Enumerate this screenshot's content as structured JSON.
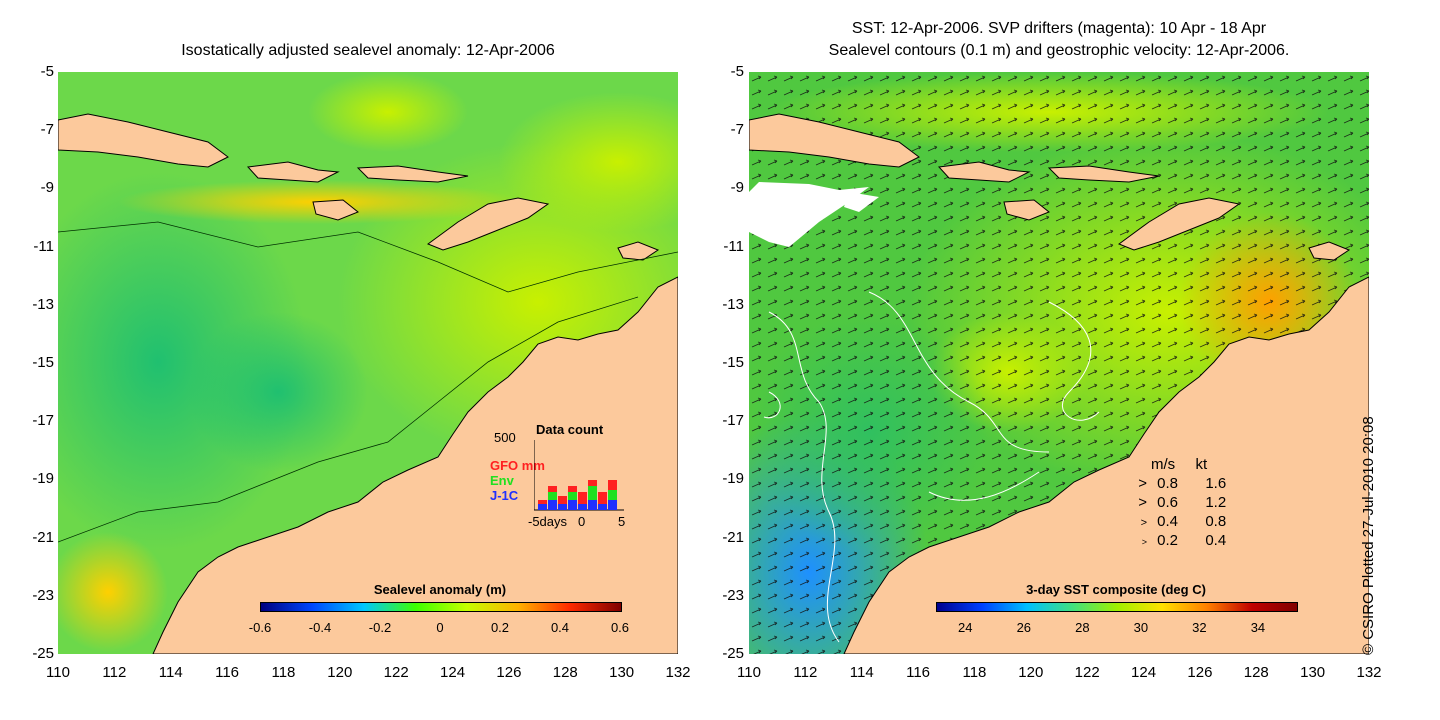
{
  "left_panel": {
    "title": "Isostatically adjusted sealevel anomaly: 12-Apr-2006",
    "colorbar": {
      "title": "Sealevel anomaly (m)",
      "ticks": [
        "-0.6",
        "-0.4",
        "-0.2",
        "0",
        "0.2",
        "0.4",
        "0.6"
      ]
    },
    "inset": {
      "title": "Data count",
      "ymax_label": "500",
      "series": [
        {
          "name": "GFO mm",
          "color": "#ff2020"
        },
        {
          "name": "Env",
          "color": "#20e020"
        },
        {
          "name": "J-1C",
          "color": "#2030ff"
        }
      ],
      "x_labels": [
        "-5days",
        "0",
        "5"
      ]
    }
  },
  "right_panel": {
    "title_line1": "SST: 12-Apr-2006. SVP drifters (magenta): 10 Apr - 18 Apr",
    "title_line2": "Sealevel contours (0.1 m) and geostrophic velocity: 12-Apr-2006.",
    "colorbar": {
      "title": "3-day SST composite (deg C)",
      "ticks": [
        "24",
        "26",
        "28",
        "30",
        "32",
        "34"
      ]
    },
    "velocity_legend": {
      "header_ms": "m/s",
      "header_kt": "kt",
      "rows": [
        {
          "ms": "0.8",
          "kt": "1.6"
        },
        {
          "ms": "0.6",
          "kt": "1.2"
        },
        {
          "ms": "0.4",
          "kt": "0.8"
        },
        {
          "ms": "0.2",
          "kt": "0.4"
        }
      ]
    }
  },
  "axes": {
    "y_ticks": [
      "-5",
      "-7",
      "-9",
      "-11",
      "-13",
      "-15",
      "-17",
      "-19",
      "-21",
      "-23",
      "-25"
    ],
    "x_ticks": [
      "110",
      "112",
      "114",
      "116",
      "118",
      "120",
      "122",
      "124",
      "126",
      "128",
      "130",
      "132"
    ]
  },
  "copyright": "© CSIRO Plotted 27-Jul-2010 20:08",
  "colors": {
    "land": "#fcc99c",
    "ocean_base": "#8ce21c",
    "sla_cbar": [
      "#00007f",
      "#0047ff",
      "#00c7ff",
      "#3dff00",
      "#c5ff00",
      "#ffb200",
      "#ff2a00",
      "#7f0000"
    ],
    "sst_cbar": [
      "#00008f",
      "#0040ff",
      "#00c0ff",
      "#40e080",
      "#a0f000",
      "#ffe000",
      "#ff8000",
      "#c00000",
      "#800000"
    ]
  }
}
